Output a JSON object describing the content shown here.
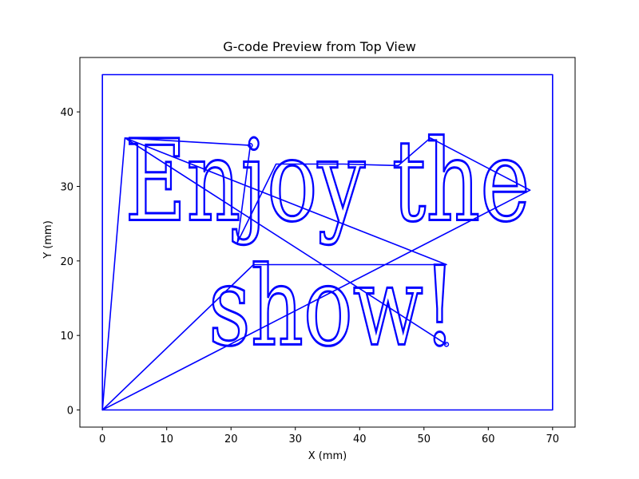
{
  "chart_data": {
    "type": "line",
    "title": "G-code Preview from Top View",
    "xlabel": "X (mm)",
    "ylabel": "Y (mm)",
    "xlim": [
      -3.5,
      73.5
    ],
    "ylim": [
      -2.3,
      47.3
    ],
    "xticks": [
      0,
      10,
      20,
      30,
      40,
      50,
      60,
      70
    ],
    "yticks": [
      0,
      10,
      20,
      30,
      40
    ],
    "grid": false,
    "line_color": "#0000ff",
    "series": [
      {
        "role": "border",
        "x": [
          0,
          70,
          70,
          0,
          0
        ],
        "y": [
          0,
          0,
          45,
          45,
          0
        ]
      },
      {
        "role": "travel",
        "x": [
          0,
          3.5,
          23,
          21,
          27,
          37.5,
          46,
          51,
          66.5,
          0,
          23.5,
          53.5,
          3.5,
          53.5
        ],
        "y": [
          0,
          36.5,
          35.5,
          22.5,
          33,
          33,
          32.8,
          36.5,
          29.5,
          0,
          19.5,
          19.5,
          36.5,
          8.8
        ]
      }
    ],
    "engraved_text": [
      {
        "text": "Enjoy the",
        "x_start": 3.5,
        "x_end": 66.5,
        "y_base": 25.5,
        "y_top": 36.5
      },
      {
        "text": "show!",
        "x_start": 16.5,
        "x_end": 55,
        "y_base": 8.8,
        "y_top": 19.5
      }
    ]
  }
}
